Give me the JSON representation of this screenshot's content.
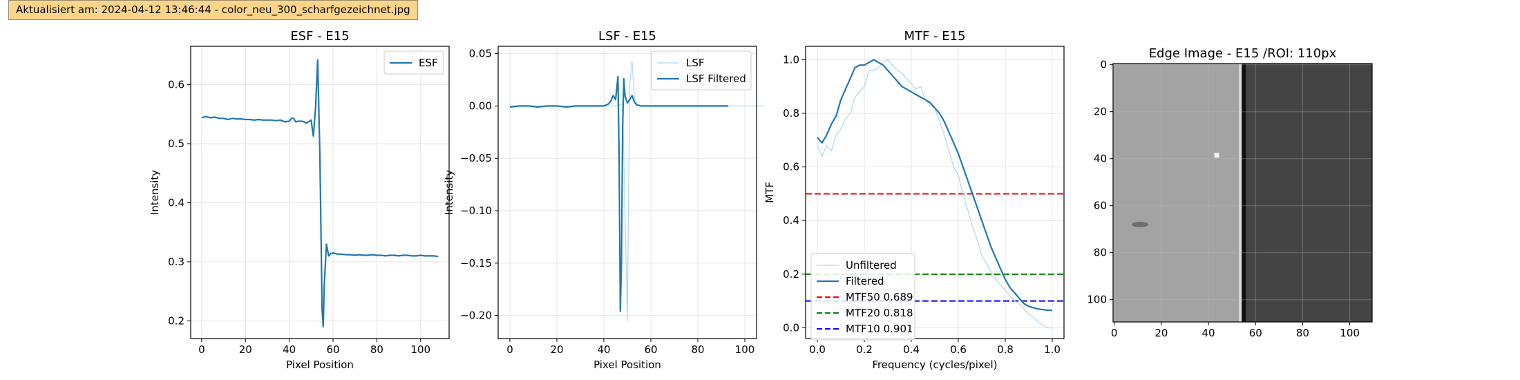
{
  "banner": {
    "text": "Aktualisiert am: 2024-04-12 13:46:44 - color_neu_300_scharfgezeichnet.jpg"
  },
  "chart_data": [
    {
      "type": "line",
      "title": "ESF - E15",
      "xlabel": "Pixel Position",
      "ylabel": "Intensity",
      "xlim": [
        -5,
        113
      ],
      "ylim": [
        0.17,
        0.665
      ],
      "xticks": [
        0,
        20,
        40,
        60,
        80,
        100
      ],
      "yticks": [
        0.2,
        0.3,
        0.4,
        0.5,
        0.6
      ],
      "grid": true,
      "legend": "top-right",
      "series": [
        {
          "name": "ESF",
          "color": "#1f77b4",
          "x": [
            0,
            2,
            4,
            6,
            8,
            10,
            12,
            14,
            16,
            18,
            20,
            22,
            24,
            26,
            28,
            30,
            32,
            34,
            36,
            38,
            40,
            41,
            42,
            43,
            44,
            46,
            48,
            50,
            51,
            52,
            53,
            54,
            54.5,
            55,
            55.5,
            56,
            57,
            58,
            59,
            60,
            62,
            64,
            66,
            68,
            70,
            72,
            74,
            76,
            78,
            80,
            82,
            84,
            86,
            88,
            90,
            92,
            94,
            96,
            98,
            100,
            102,
            104,
            106,
            108
          ],
          "y": [
            0.544,
            0.546,
            0.544,
            0.545,
            0.543,
            0.543,
            0.541,
            0.543,
            0.542,
            0.542,
            0.541,
            0.541,
            0.54,
            0.541,
            0.54,
            0.54,
            0.54,
            0.539,
            0.54,
            0.537,
            0.538,
            0.543,
            0.543,
            0.537,
            0.538,
            0.538,
            0.535,
            0.54,
            0.513,
            0.56,
            0.642,
            0.48,
            0.35,
            0.22,
            0.19,
            0.26,
            0.33,
            0.31,
            0.314,
            0.315,
            0.313,
            0.313,
            0.312,
            0.312,
            0.311,
            0.312,
            0.311,
            0.311,
            0.312,
            0.311,
            0.311,
            0.31,
            0.311,
            0.311,
            0.31,
            0.311,
            0.311,
            0.31,
            0.31,
            0.311,
            0.31,
            0.31,
            0.31,
            0.309
          ]
        }
      ]
    },
    {
      "type": "line",
      "title": "LSF - E15",
      "xlabel": "Pixel Position",
      "ylabel": "Intensity",
      "xlim": [
        -5,
        105
      ],
      "ylim": [
        -0.222,
        0.057
      ],
      "xticks": [
        0,
        20,
        40,
        60,
        80,
        100
      ],
      "yticks": [
        -0.2,
        -0.15,
        -0.1,
        -0.05,
        0.0,
        0.05
      ],
      "grid": true,
      "legend": "top-right",
      "series": [
        {
          "name": "LSF",
          "color": "#aed6f1",
          "x": [
            0,
            10,
            20,
            30,
            40,
            44,
            46,
            47,
            48,
            49,
            50,
            51,
            52,
            53,
            54,
            56,
            58,
            60,
            70,
            80,
            90,
            100,
            108
          ],
          "y": [
            0,
            0,
            0,
            0,
            0,
            0,
            0,
            0.002,
            0.001,
            -0.1,
            -0.205,
            0.02,
            0.043,
            0.008,
            0.002,
            0,
            0,
            0,
            0,
            0,
            0,
            0,
            0
          ]
        },
        {
          "name": "LSF Filtered",
          "color": "#1f77b4",
          "x": [
            0,
            4,
            8,
            12,
            16,
            20,
            24,
            28,
            32,
            36,
            40,
            42,
            43,
            44,
            45,
            46,
            46.5,
            47,
            47.5,
            48,
            48.5,
            49,
            50,
            51,
            52,
            53,
            54,
            56,
            60,
            70,
            80,
            93
          ],
          "y": [
            -0.001,
            0,
            0,
            -0.001,
            0,
            0,
            -0.001,
            0,
            0,
            0,
            0,
            0.002,
            0.005,
            0.01,
            0.006,
            0.028,
            -0.05,
            -0.196,
            -0.15,
            -0.02,
            0.026,
            0.01,
            0.003,
            0.006,
            0.01,
            0.004,
            0.001,
            0,
            0,
            0,
            0,
            0
          ]
        }
      ]
    },
    {
      "type": "line",
      "title": "MTF - E15",
      "xlabel": "Frequency (cycles/pixel)",
      "ylabel": "MTF",
      "xlim": [
        -0.05,
        1.05
      ],
      "ylim": [
        -0.04,
        1.05
      ],
      "xticks": [
        0.0,
        0.2,
        0.4,
        0.6,
        0.8,
        1.0
      ],
      "yticks": [
        0.0,
        0.2,
        0.4,
        0.6,
        0.8,
        1.0
      ],
      "grid": true,
      "legend": "lower-left",
      "series": [
        {
          "name": "Unfiltered",
          "color": "#aed6f1",
          "x": [
            0,
            0.02,
            0.04,
            0.06,
            0.08,
            0.1,
            0.12,
            0.14,
            0.16,
            0.18,
            0.2,
            0.22,
            0.24,
            0.26,
            0.28,
            0.3,
            0.32,
            0.34,
            0.36,
            0.38,
            0.4,
            0.42,
            0.44,
            0.46,
            0.48,
            0.5,
            0.52,
            0.54,
            0.56,
            0.58,
            0.6,
            0.62,
            0.64,
            0.66,
            0.68,
            0.7,
            0.72,
            0.74,
            0.76,
            0.78,
            0.8,
            0.82,
            0.84,
            0.86,
            0.88,
            0.9,
            0.92,
            0.94,
            0.96,
            0.98,
            1.0
          ],
          "y": [
            0.68,
            0.64,
            0.68,
            0.66,
            0.72,
            0.74,
            0.78,
            0.8,
            0.86,
            0.88,
            0.9,
            0.96,
            0.96,
            0.97,
            0.99,
            1.0,
            0.98,
            0.96,
            0.95,
            0.93,
            0.91,
            0.89,
            0.9,
            0.85,
            0.83,
            0.82,
            0.77,
            0.72,
            0.66,
            0.6,
            0.57,
            0.5,
            0.44,
            0.38,
            0.33,
            0.27,
            0.24,
            0.21,
            0.18,
            0.16,
            0.14,
            0.12,
            0.1,
            0.09,
            0.07,
            0.05,
            0.04,
            0.02,
            0.01,
            0.0,
            0.0
          ]
        },
        {
          "name": "Filtered",
          "color": "#1f77b4",
          "x": [
            0,
            0.02,
            0.04,
            0.06,
            0.08,
            0.1,
            0.12,
            0.14,
            0.16,
            0.18,
            0.2,
            0.22,
            0.24,
            0.26,
            0.28,
            0.3,
            0.32,
            0.34,
            0.36,
            0.38,
            0.4,
            0.42,
            0.44,
            0.46,
            0.48,
            0.5,
            0.52,
            0.54,
            0.56,
            0.58,
            0.6,
            0.62,
            0.64,
            0.66,
            0.68,
            0.7,
            0.72,
            0.74,
            0.76,
            0.78,
            0.8,
            0.82,
            0.84,
            0.86,
            0.88,
            0.9,
            0.92,
            0.94,
            0.96,
            0.98,
            1.0
          ],
          "y": [
            0.71,
            0.69,
            0.72,
            0.76,
            0.79,
            0.85,
            0.89,
            0.93,
            0.97,
            0.98,
            0.98,
            0.99,
            1.0,
            0.99,
            0.98,
            0.96,
            0.94,
            0.92,
            0.9,
            0.89,
            0.88,
            0.87,
            0.86,
            0.85,
            0.84,
            0.82,
            0.8,
            0.77,
            0.73,
            0.69,
            0.65,
            0.6,
            0.55,
            0.5,
            0.45,
            0.4,
            0.35,
            0.3,
            0.26,
            0.22,
            0.18,
            0.15,
            0.13,
            0.11,
            0.09,
            0.08,
            0.075,
            0.07,
            0.068,
            0.066,
            0.065
          ]
        }
      ],
      "hlines": [
        {
          "name": "MTF50 0.689",
          "y": 0.5,
          "color": "#ff0000"
        },
        {
          "name": "MTF20 0.818",
          "y": 0.2,
          "color": "#008000"
        },
        {
          "name": "MTF10 0.901",
          "y": 0.1,
          "color": "#0000ff"
        }
      ]
    },
    {
      "type": "heatmap",
      "title": "Edge Image - E15 /ROI: 110px",
      "xlim": [
        -0.5,
        109.5
      ],
      "ylim": [
        109.5,
        -0.5
      ],
      "xticks": [
        0,
        20,
        40,
        60,
        80,
        100
      ],
      "yticks": [
        0,
        20,
        40,
        60,
        80,
        100
      ],
      "left_region_color": "#a3a3a3",
      "right_region_color": "#444444",
      "edge_column": 55,
      "edge_color": "#111111",
      "grid": true
    }
  ]
}
